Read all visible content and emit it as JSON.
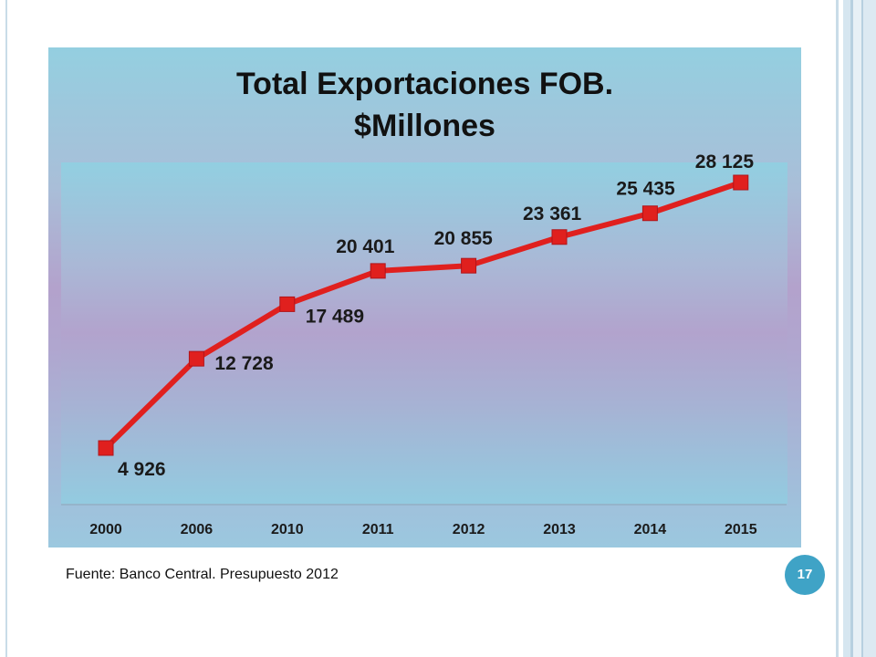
{
  "slide": {
    "source_text": "Fuente: Banco Central. Presupuesto 2012",
    "page_number": "17"
  },
  "chart_data": {
    "type": "line",
    "title_line1": "Total Exportaciones FOB.",
    "title_line2": "$Millones",
    "categories": [
      "2000",
      "2006",
      "2010",
      "2011",
      "2012",
      "2013",
      "2014",
      "2015"
    ],
    "series": [
      {
        "values": [
          4926,
          12728,
          17489,
          20401,
          20855,
          23361,
          25435,
          28125
        ],
        "labels": [
          "4 926",
          "12 728",
          "17 489",
          "20 401",
          "20 855",
          "23 361",
          "25 435",
          "28 125"
        ],
        "color": "#e0201e",
        "marker": "square"
      }
    ],
    "xlabel": "",
    "ylabel": "",
    "grid": false,
    "legend": "none"
  }
}
